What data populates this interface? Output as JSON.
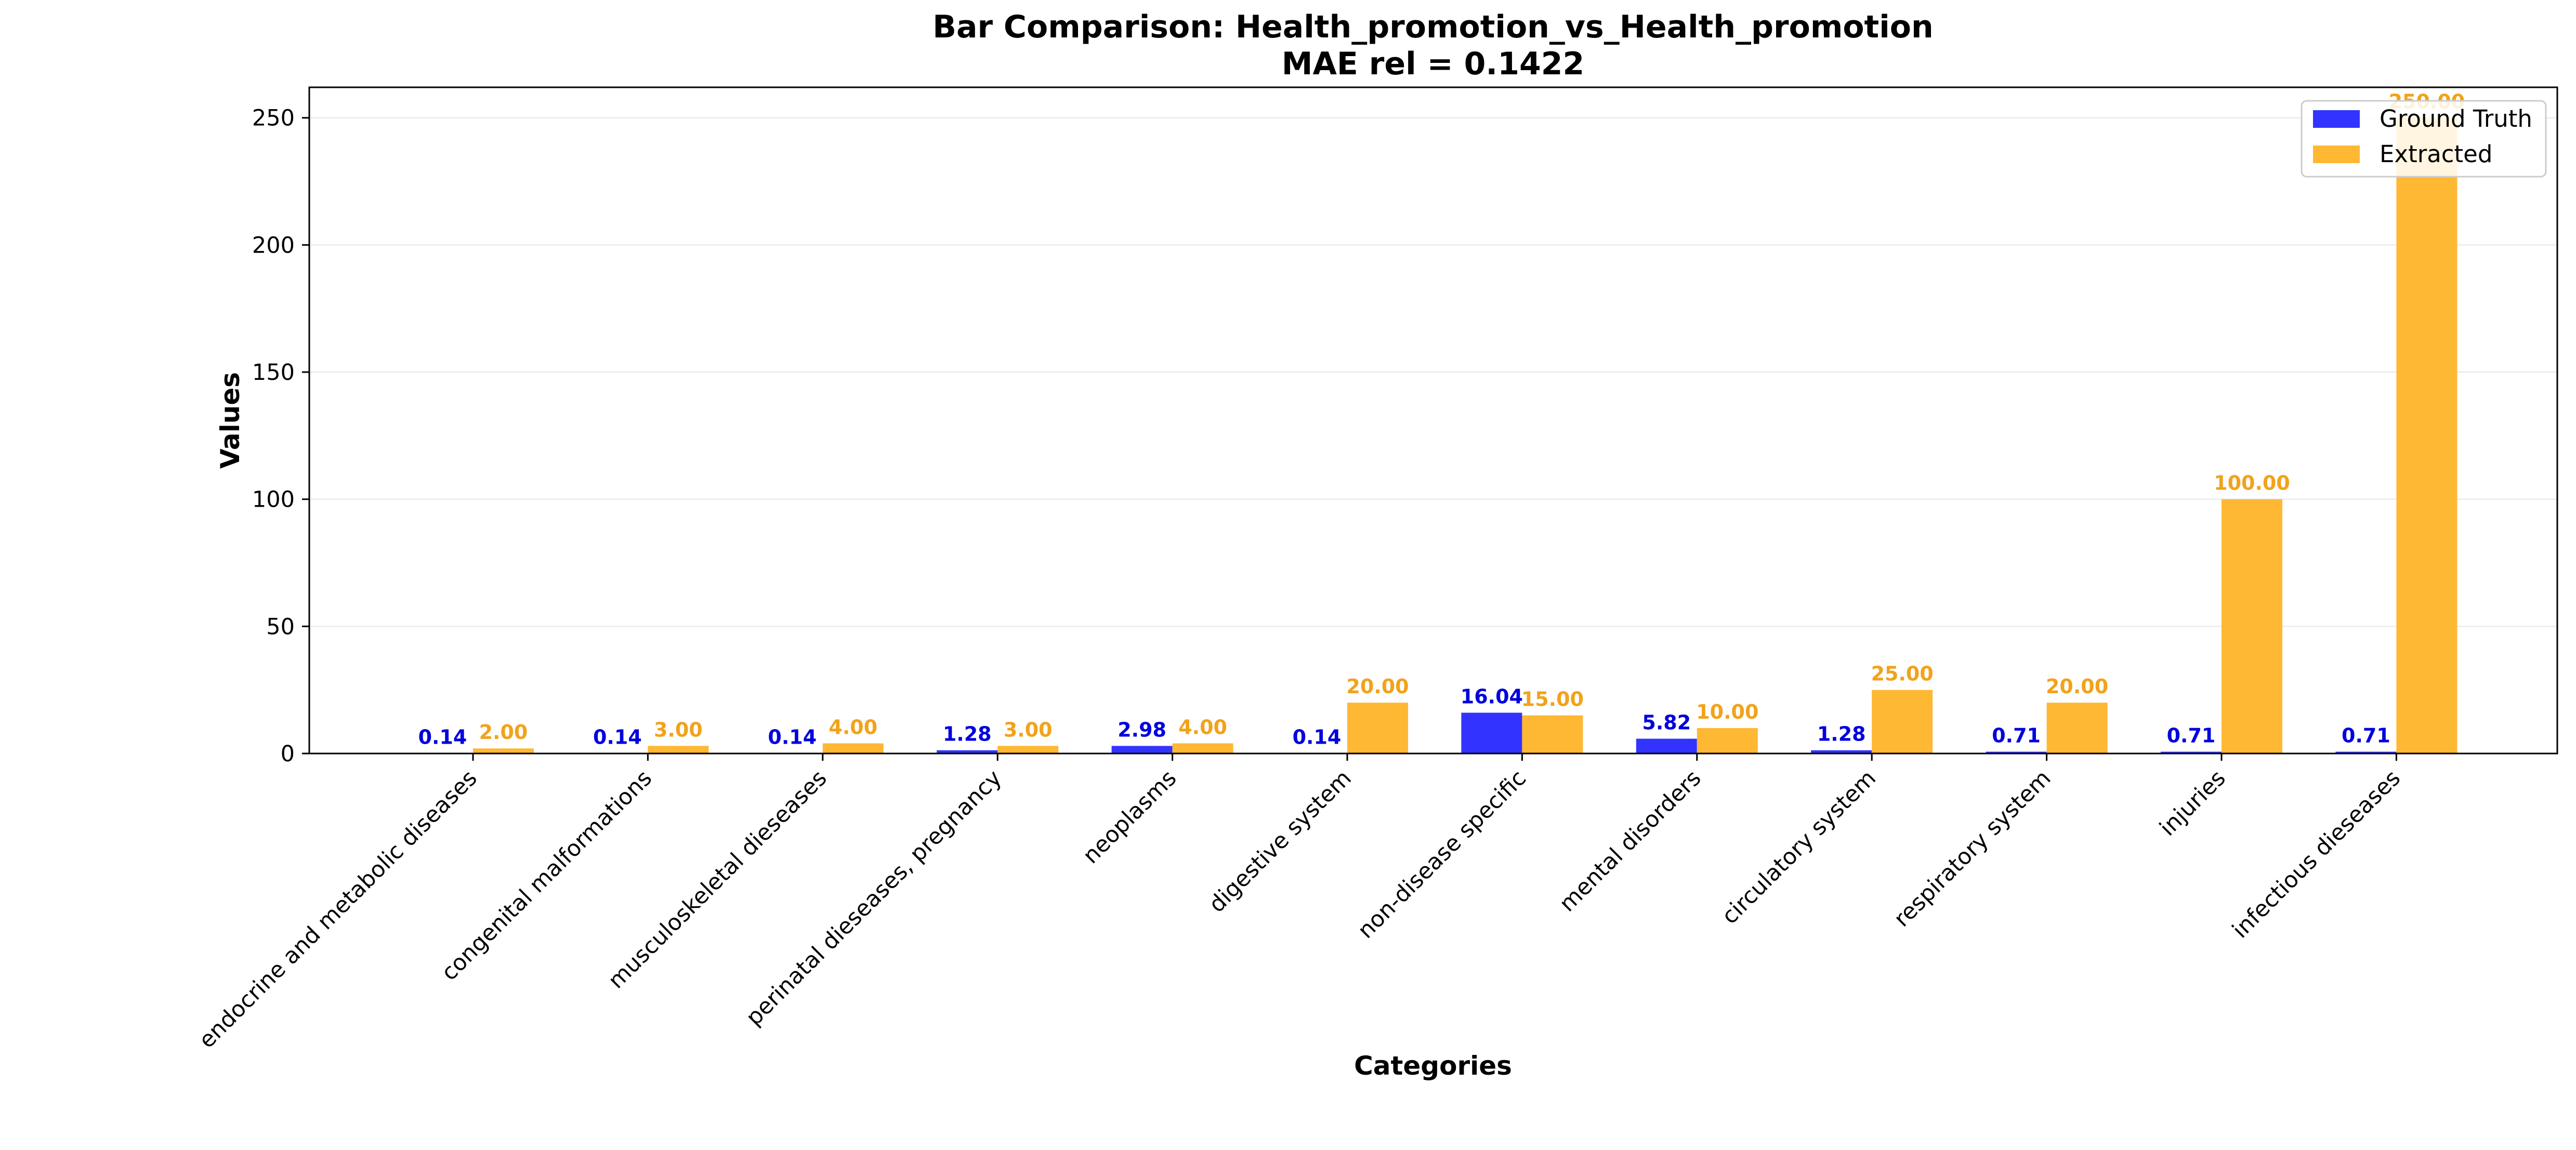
{
  "chart_data": {
    "type": "bar",
    "title": "Bar Comparison: Health_promotion_vs_Health_promotion",
    "subtitle": "MAE rel = 0.1422",
    "xlabel": "Categories",
    "ylabel": "Values",
    "ylim": [
      0,
      262
    ],
    "yticks": [
      0,
      50,
      100,
      150,
      200,
      250
    ],
    "grid": "horizontal",
    "legend_position": "top-right",
    "categories": [
      "endocrine and metabolic diseases",
      "congenital malformations",
      "musculoskeletal dieseases",
      "perinatal dieseases, pregnancy",
      "neoplasms",
      "digestive system",
      "non-disease specific",
      "mental disorders",
      "circulatory system",
      "respiratory system",
      "injuries",
      "infectious dieseases"
    ],
    "series": [
      {
        "name": "Ground Truth",
        "color": "#3333ff",
        "label_color": "#0000dd",
        "values": [
          0.14,
          0.14,
          0.14,
          1.28,
          2.98,
          0.14,
          16.04,
          5.82,
          1.28,
          0.71,
          0.71,
          0.71
        ],
        "labels": [
          "0.14",
          "0.14",
          "0.14",
          "1.28",
          "2.98",
          "0.14",
          "16.04",
          "5.82",
          "1.28",
          "0.71",
          "0.71",
          "0.71"
        ]
      },
      {
        "name": "Extracted",
        "color": "#ffb833",
        "label_color": "#f2a21a",
        "values": [
          2.0,
          3.0,
          4.0,
          3.0,
          4.0,
          20.0,
          15.0,
          10.0,
          25.0,
          20.0,
          100.0,
          250.0
        ],
        "labels": [
          "2.00",
          "3.00",
          "4.00",
          "3.00",
          "4.00",
          "20.00",
          "15.00",
          "10.00",
          "25.00",
          "20.00",
          "100.00",
          "250.00"
        ]
      }
    ]
  }
}
